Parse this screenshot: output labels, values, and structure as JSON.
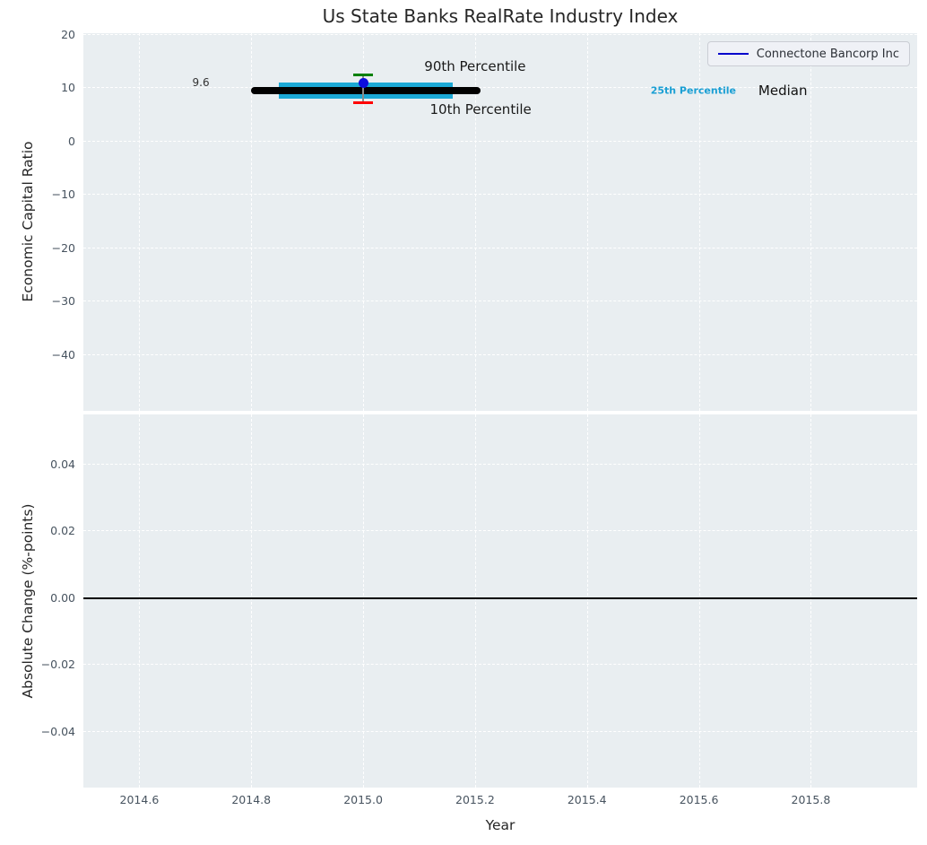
{
  "legend": {
    "label": "Connectone Bancorp Inc",
    "line_color": "#0000cc"
  },
  "colors": {
    "figure_bg": "#ffffff",
    "axes_bg": "#e9eef1",
    "grid": "#ffffff",
    "tick_label": "#47535f",
    "text": "#262626",
    "median_line": "#000000",
    "percentile_band": "#1ba8d5",
    "company_point": "#0d0ddd",
    "p90_cap": "#008000",
    "p10_cap": "#ff0000",
    "whisker": "#8a8a8a",
    "zero_line": "#000000"
  },
  "chart_data": {
    "type": "scatter",
    "title": "Us State Banks RealRate Industry Index",
    "x_axis": {
      "label": "Year",
      "lim": [
        2014.5,
        2015.99
      ],
      "ticks": [
        {
          "v": 2014.6,
          "label": "2014.6"
        },
        {
          "v": 2014.8,
          "label": "2014.8"
        },
        {
          "v": 2015.0,
          "label": "2015.0"
        },
        {
          "v": 2015.2,
          "label": "2015.2"
        },
        {
          "v": 2015.4,
          "label": "2015.4"
        },
        {
          "v": 2015.6,
          "label": "2015.6"
        },
        {
          "v": 2015.8,
          "label": "2015.8"
        }
      ]
    },
    "panels": [
      {
        "name": "economic-capital-ratio",
        "ylabel": "Economic Capital Ratio",
        "ylim": [
          -50.5,
          20.3
        ],
        "grid": true,
        "yticks": [
          {
            "v": 20,
            "label": "20"
          },
          {
            "v": 10,
            "label": "10"
          },
          {
            "v": 0,
            "label": "0"
          },
          {
            "v": -10,
            "label": "−10"
          },
          {
            "v": -20,
            "label": "−20"
          },
          {
            "v": -30,
            "label": "−30"
          },
          {
            "v": -40,
            "label": "−40"
          }
        ],
        "industry": {
          "year": 2015.0,
          "median": 9.6,
          "median_span_years": [
            2014.8,
            2015.21
          ],
          "p25": 7.95,
          "p75": 11.0,
          "band_span_years": [
            2014.85,
            2015.16
          ],
          "p10": 7.3,
          "p90": 12.5,
          "cap_halfwidth_years": 0.018
        },
        "company_point": {
          "name": "Connectone Bancorp Inc",
          "year": 2015.0,
          "value": 11.0
        },
        "annotations": [
          {
            "text": "9.6",
            "x": 2014.71,
            "y": 11.1,
            "size": 12,
            "color": "#333333",
            "bold": false
          },
          {
            "text": "90th Percentile",
            "x": 2015.2,
            "y": 14.1,
            "size": 15,
            "color": "#1a1a1a",
            "bold": false
          },
          {
            "text": "10th Percentile",
            "x": 2015.21,
            "y": 6.0,
            "size": 15,
            "color": "#1a1a1a",
            "bold": false
          },
          {
            "text": "25th Percentile",
            "x": 2015.59,
            "y": 9.55,
            "size": 11,
            "color": "#1a9fd4",
            "bold": true
          },
          {
            "text": "Median",
            "x": 2015.75,
            "y": 9.5,
            "size": 15,
            "color": "#111111",
            "bold": false
          }
        ]
      },
      {
        "name": "absolute-change",
        "ylabel": "Absolute Change (%-points)",
        "ylim": [
          -0.0567,
          0.055
        ],
        "grid": true,
        "yticks": [
          {
            "v": 0.04,
            "label": "0.04"
          },
          {
            "v": 0.02,
            "label": "0.02"
          },
          {
            "v": 0.0,
            "label": "0.00"
          },
          {
            "v": -0.02,
            "label": "−0.02"
          },
          {
            "v": -0.04,
            "label": "−0.04"
          }
        ],
        "zero_line": 0.0
      }
    ]
  }
}
